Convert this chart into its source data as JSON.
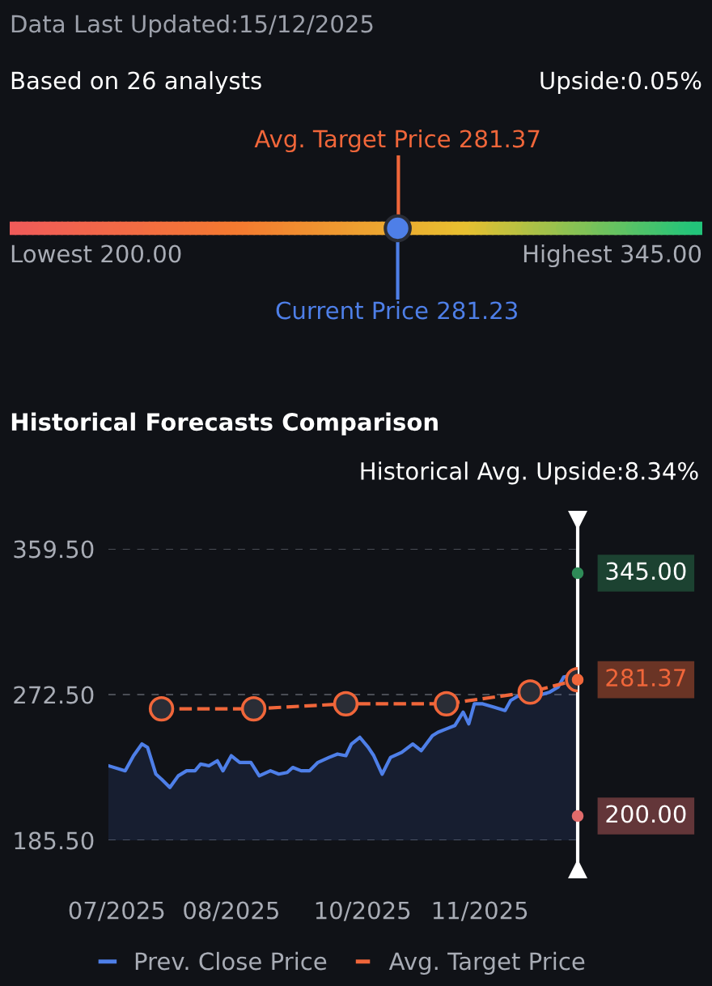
{
  "chart_data": [
    {
      "type": "other",
      "title": "Data Last Updated:15/12/2025",
      "annotations": [
        "Based on 26 analysts",
        "Upside:0.05%"
      ],
      "series": [
        {
          "name": "Lowest",
          "values": [
            200
          ],
          "value_labels": [
            "200.00"
          ]
        },
        {
          "name": "Highest",
          "values": [
            345
          ],
          "value_labels": [
            "345.00"
          ]
        },
        {
          "name": "Avg. Target Price",
          "color": "#f0663a",
          "values": [
            281.37
          ],
          "value_labels": [
            "281.37"
          ]
        },
        {
          "name": "Current Price",
          "color": "#4e7fe8",
          "values": [
            281.23
          ],
          "value_labels": [
            "281.23"
          ]
        }
      ]
    },
    {
      "type": "line",
      "title": "Historical Forecasts Comparison",
      "subtitle": "Historical Avg. Upside:8.34%",
      "ylim": [
        185.5,
        359.5
      ],
      "yticks": [
        {
          "value": 185.5,
          "label": "185.50"
        },
        {
          "value": 272.5,
          "label": "272.50"
        },
        {
          "value": 359.5,
          "label": "359.50"
        }
      ],
      "xlim": [
        "2025-06-30",
        "2025-12-15"
      ],
      "xticks": [
        {
          "value": "2025-07-03",
          "label": "07/2025"
        },
        {
          "value": "2025-08-13",
          "label": "08/2025"
        },
        {
          "value": "2025-09-29",
          "label": "10/2025"
        },
        {
          "value": "2025-11-10",
          "label": "11/2025"
        }
      ],
      "grid": "y",
      "legend": "bottom",
      "ref_lines": [
        {
          "axis": "x",
          "value": "2025-12-15",
          "color": "#ffffff"
        }
      ],
      "series": [
        {
          "name": "Prev. Close Price",
          "type": "area",
          "color": "#4e7fe8",
          "x": [
            "2025-06-30",
            "2025-07-06",
            "2025-07-09",
            "2025-07-12",
            "2025-07-14",
            "2025-07-17",
            "2025-07-19",
            "2025-07-22",
            "2025-07-25",
            "2025-07-28",
            "2025-07-31",
            "2025-08-02",
            "2025-08-05",
            "2025-08-08",
            "2025-08-10",
            "2025-08-13",
            "2025-08-16",
            "2025-08-20",
            "2025-08-23",
            "2025-08-27",
            "2025-08-30",
            "2025-09-02",
            "2025-09-04",
            "2025-09-07",
            "2025-09-10",
            "2025-09-13",
            "2025-09-17",
            "2025-09-20",
            "2025-09-23",
            "2025-09-25",
            "2025-09-28",
            "2025-10-01",
            "2025-10-03",
            "2025-10-06",
            "2025-10-09",
            "2025-10-13",
            "2025-10-17",
            "2025-10-20",
            "2025-10-24",
            "2025-10-26",
            "2025-10-29",
            "2025-11-01",
            "2025-11-04",
            "2025-11-06",
            "2025-11-08",
            "2025-11-11",
            "2025-11-15",
            "2025-11-19",
            "2025-11-21",
            "2025-11-24",
            "2025-11-27",
            "2025-12-01",
            "2025-12-05",
            "2025-12-08",
            "2025-12-10",
            "2025-12-13",
            "2025-12-15"
          ],
          "values": [
            230,
            227,
            236,
            243,
            241,
            225,
            222,
            217,
            224,
            227,
            227,
            231,
            230,
            233,
            227,
            236,
            232,
            232,
            224,
            227,
            225,
            226,
            229,
            227,
            227,
            232,
            235,
            237,
            236,
            243,
            247,
            241,
            236,
            225,
            235,
            238,
            243,
            239,
            248,
            250,
            252,
            254,
            262,
            255,
            267,
            267,
            265,
            263,
            269,
            272,
            269,
            272,
            274,
            277,
            283,
            284,
            281.23
          ]
        },
        {
          "name": "Avg. Target Price",
          "type": "line",
          "color": "#f0663a",
          "line_style": "dashed",
          "marker": "circle",
          "x": [
            "2025-07-19",
            "2025-08-21",
            "2025-09-23",
            "2025-10-29",
            "2025-11-28",
            "2025-12-15"
          ],
          "values": [
            264,
            264,
            267,
            267,
            274,
            281.37
          ]
        },
        {
          "type": "scatter",
          "color": "#2e8b57",
          "x": [
            "2025-12-15"
          ],
          "values": [
            345
          ],
          "value_labels": [
            "345.00"
          ]
        },
        {
          "type": "scatter",
          "color": "#f0663a",
          "x": [
            "2025-12-15"
          ],
          "values": [
            281.37
          ],
          "value_labels": [
            "281.37"
          ]
        },
        {
          "type": "scatter",
          "color": "#e06b6b",
          "x": [
            "2025-12-15"
          ],
          "values": [
            200
          ],
          "value_labels": [
            "200.00"
          ]
        }
      ]
    }
  ]
}
